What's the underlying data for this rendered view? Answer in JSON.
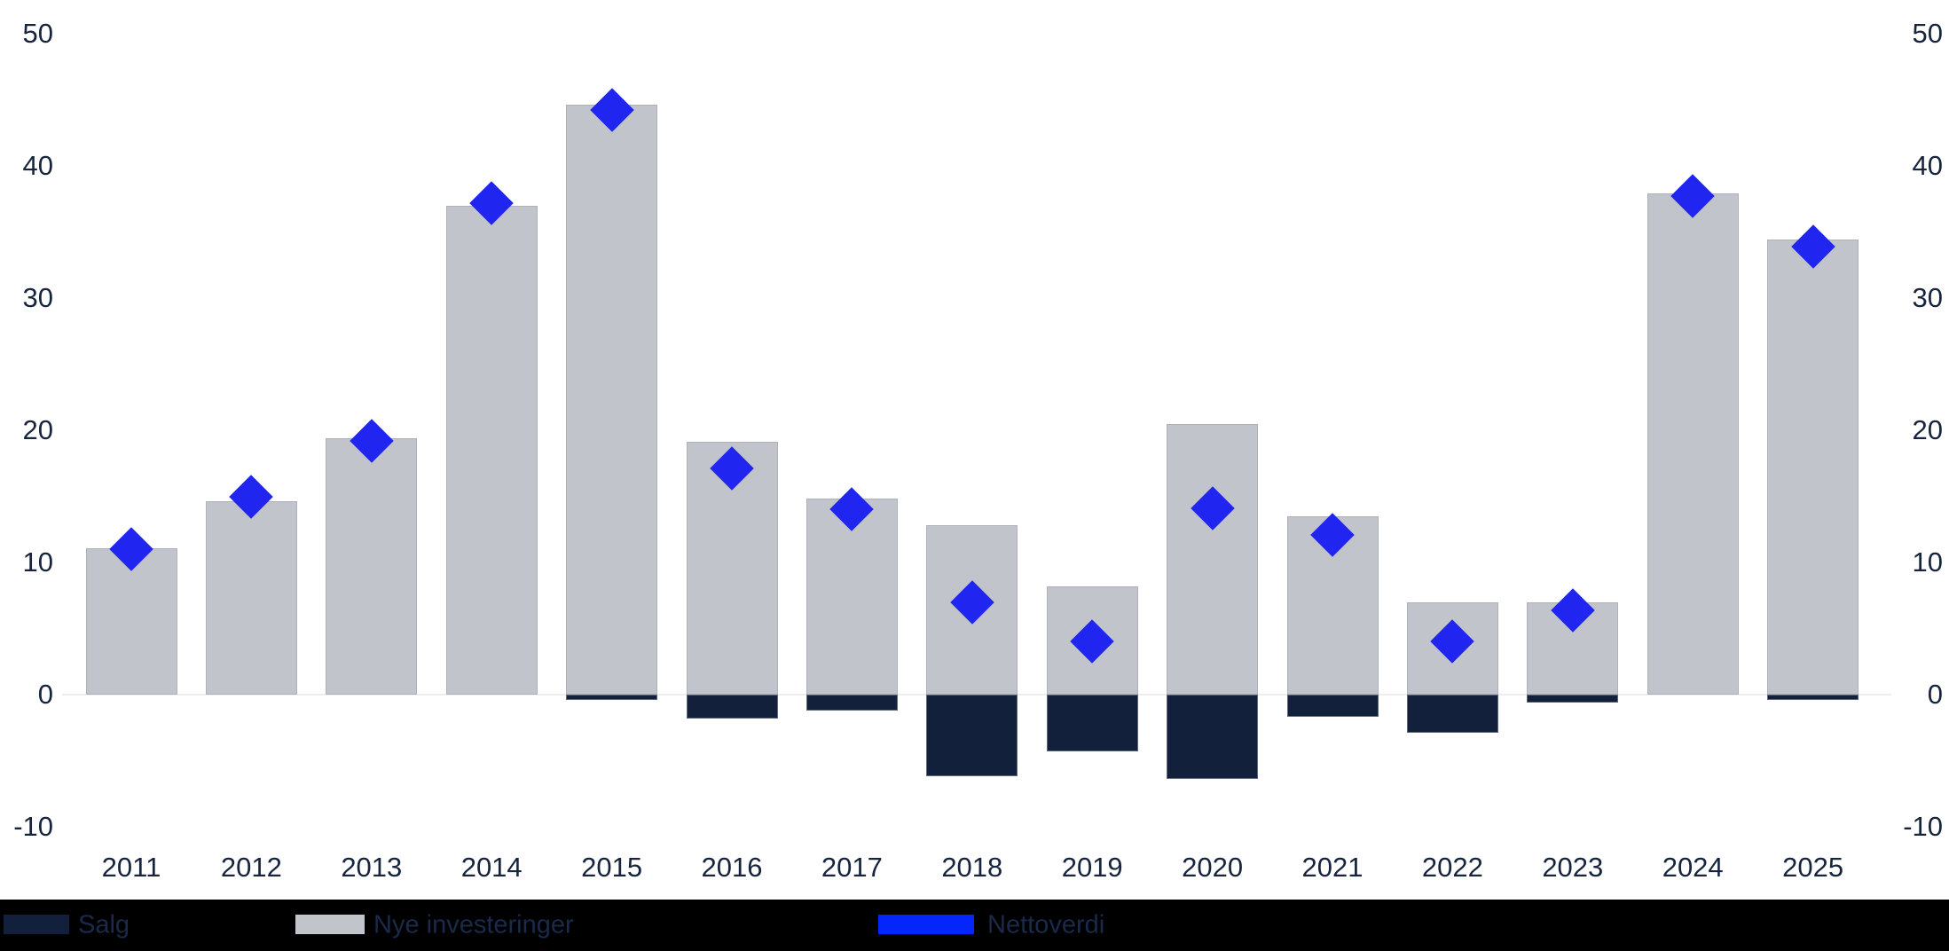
{
  "chart_data": {
    "type": "bar",
    "title": "",
    "xlabel": "",
    "ylabel": "",
    "categories": [
      "2011",
      "2012",
      "2013",
      "2014",
      "2015",
      "2016",
      "2017",
      "2018",
      "2019",
      "2020",
      "2021",
      "2022",
      "2023",
      "2024",
      "2025"
    ],
    "series": [
      {
        "name": "Salg",
        "type": "bar",
        "color": "#13203c",
        "values": [
          0,
          0,
          0,
          0,
          -0.4,
          -1.8,
          -1.2,
          -6.2,
          -4.3,
          -6.4,
          -1.7,
          -2.9,
          -0.6,
          0,
          -0.4
        ]
      },
      {
        "name": "Nye investeringer",
        "type": "bar",
        "color": "#c1c4ca",
        "values": [
          11.1,
          14.6,
          19.4,
          37.0,
          44.6,
          19.1,
          14.8,
          12.8,
          8.2,
          20.5,
          13.5,
          7.0,
          7.0,
          37.9,
          34.4
        ]
      },
      {
        "name": "Nettoverdi",
        "type": "scatter-diamond",
        "color": "#2125f0",
        "values": [
          11.0,
          15.0,
          19.2,
          37.2,
          44.2,
          17.1,
          14.0,
          7.0,
          4.0,
          14.1,
          12.1,
          4.0,
          6.4,
          37.7,
          33.9
        ]
      }
    ],
    "yticks": [
      50,
      40,
      30,
      20,
      10,
      0,
      -10
    ],
    "ylim": [
      -10,
      50
    ],
    "dual_y_axis": true,
    "grid": false,
    "zero_line": true,
    "legend_position": "bottom"
  },
  "legend": {
    "background": "#000000",
    "items": [
      {
        "label": "Salg",
        "swatch_color": "#13203c"
      },
      {
        "label": "Nye investeringer",
        "swatch_color": "#c1c4ca"
      },
      {
        "label": "Nettoverdi",
        "swatch_color": "#0426fb"
      }
    ]
  },
  "colors": {
    "axis_text": "#16243d",
    "zero_line": "#ededef",
    "bar_positive": "#c1c4ca",
    "bar_negative": "#13203c",
    "marker": "#2125f0",
    "legend_background": "#000000",
    "legend_text": "#1b2a4a"
  }
}
